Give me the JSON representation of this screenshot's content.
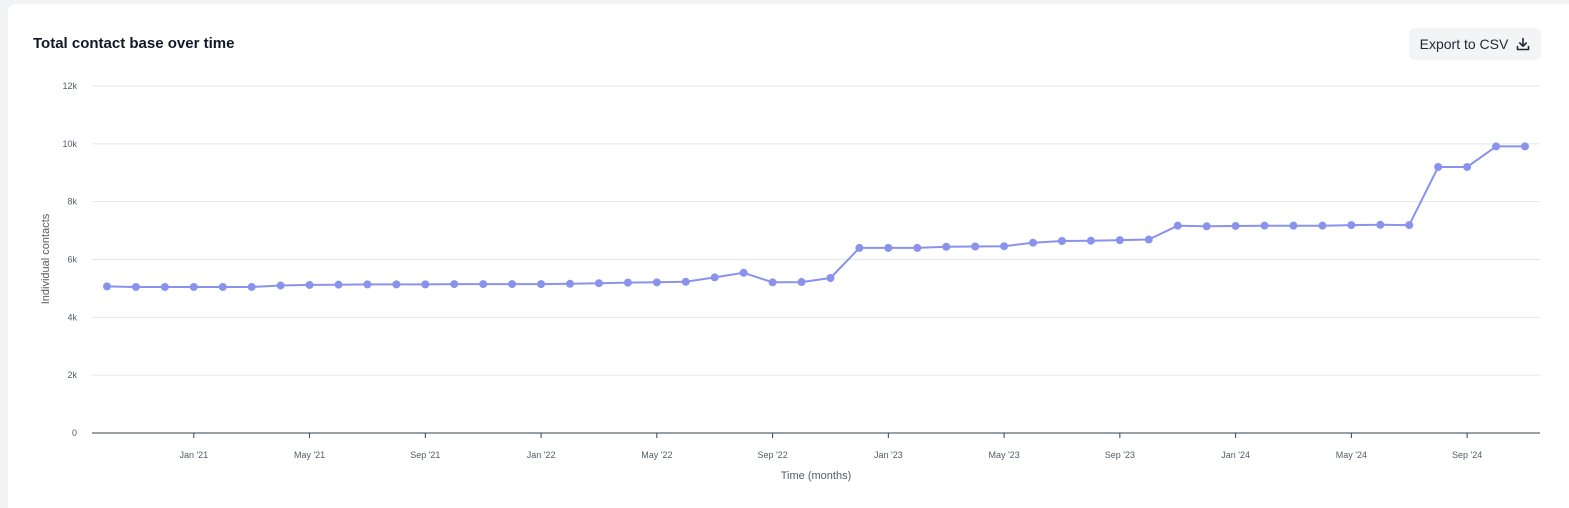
{
  "header": {
    "title": "Total contact base over time",
    "export_label": "Export to CSV",
    "export_icon": "download-icon"
  },
  "colors": {
    "line": "#8993ee",
    "point": "#8993ee",
    "grid": "#e5e7eb",
    "axis": "#374151"
  },
  "chart_data": {
    "type": "line",
    "title": "Total contact base over time",
    "xlabel": "Time (months)",
    "ylabel": "Individual contacts",
    "ylim": [
      0,
      12000
    ],
    "yticks": [
      0,
      2000,
      4000,
      6000,
      8000,
      10000,
      12000
    ],
    "ytick_labels": [
      "0",
      "2k",
      "4k",
      "6k",
      "8k",
      "10k",
      "12k"
    ],
    "xtick_labels": [
      "Jan '21",
      "May '21",
      "Sep '21",
      "Jan '22",
      "May '22",
      "Sep '22",
      "Jan '23",
      "May '23",
      "Sep '23",
      "Jan '24",
      "May '24",
      "Sep '24"
    ],
    "xtick_dates": [
      "2021-01",
      "2021-05",
      "2021-09",
      "2022-01",
      "2022-05",
      "2022-09",
      "2023-01",
      "2023-05",
      "2023-09",
      "2024-01",
      "2024-05",
      "2024-09"
    ],
    "grid": true,
    "legend": false,
    "x": [
      "2020-10",
      "2020-11",
      "2020-12",
      "2021-01",
      "2021-02",
      "2021-03",
      "2021-04",
      "2021-05",
      "2021-06",
      "2021-07",
      "2021-08",
      "2021-09",
      "2021-10",
      "2021-11",
      "2021-12",
      "2022-01",
      "2022-02",
      "2022-03",
      "2022-04",
      "2022-05",
      "2022-06",
      "2022-07",
      "2022-08",
      "2022-09",
      "2022-10",
      "2022-11",
      "2022-12",
      "2023-01",
      "2023-02",
      "2023-03",
      "2023-04",
      "2023-05",
      "2023-06",
      "2023-07",
      "2023-08",
      "2023-09",
      "2023-10",
      "2023-11",
      "2023-12",
      "2024-01",
      "2024-02",
      "2024-03",
      "2024-04",
      "2024-05",
      "2024-06",
      "2024-07",
      "2024-08",
      "2024-09",
      "2024-10",
      "2024-11"
    ],
    "series": [
      {
        "values": [
          5070,
          5050,
          5050,
          5050,
          5050,
          5050,
          5100,
          5120,
          5130,
          5140,
          5140,
          5140,
          5150,
          5150,
          5150,
          5150,
          5160,
          5180,
          5200,
          5210,
          5230,
          5380,
          5540,
          5210,
          5220,
          5360,
          6400,
          6400,
          6400,
          6440,
          6450,
          6460,
          6580,
          6640,
          6650,
          6670,
          6690,
          7170,
          7150,
          7160,
          7170,
          7170,
          7170,
          7190,
          7200,
          7190,
          9200,
          9200,
          9910,
          9910
        ]
      }
    ]
  }
}
